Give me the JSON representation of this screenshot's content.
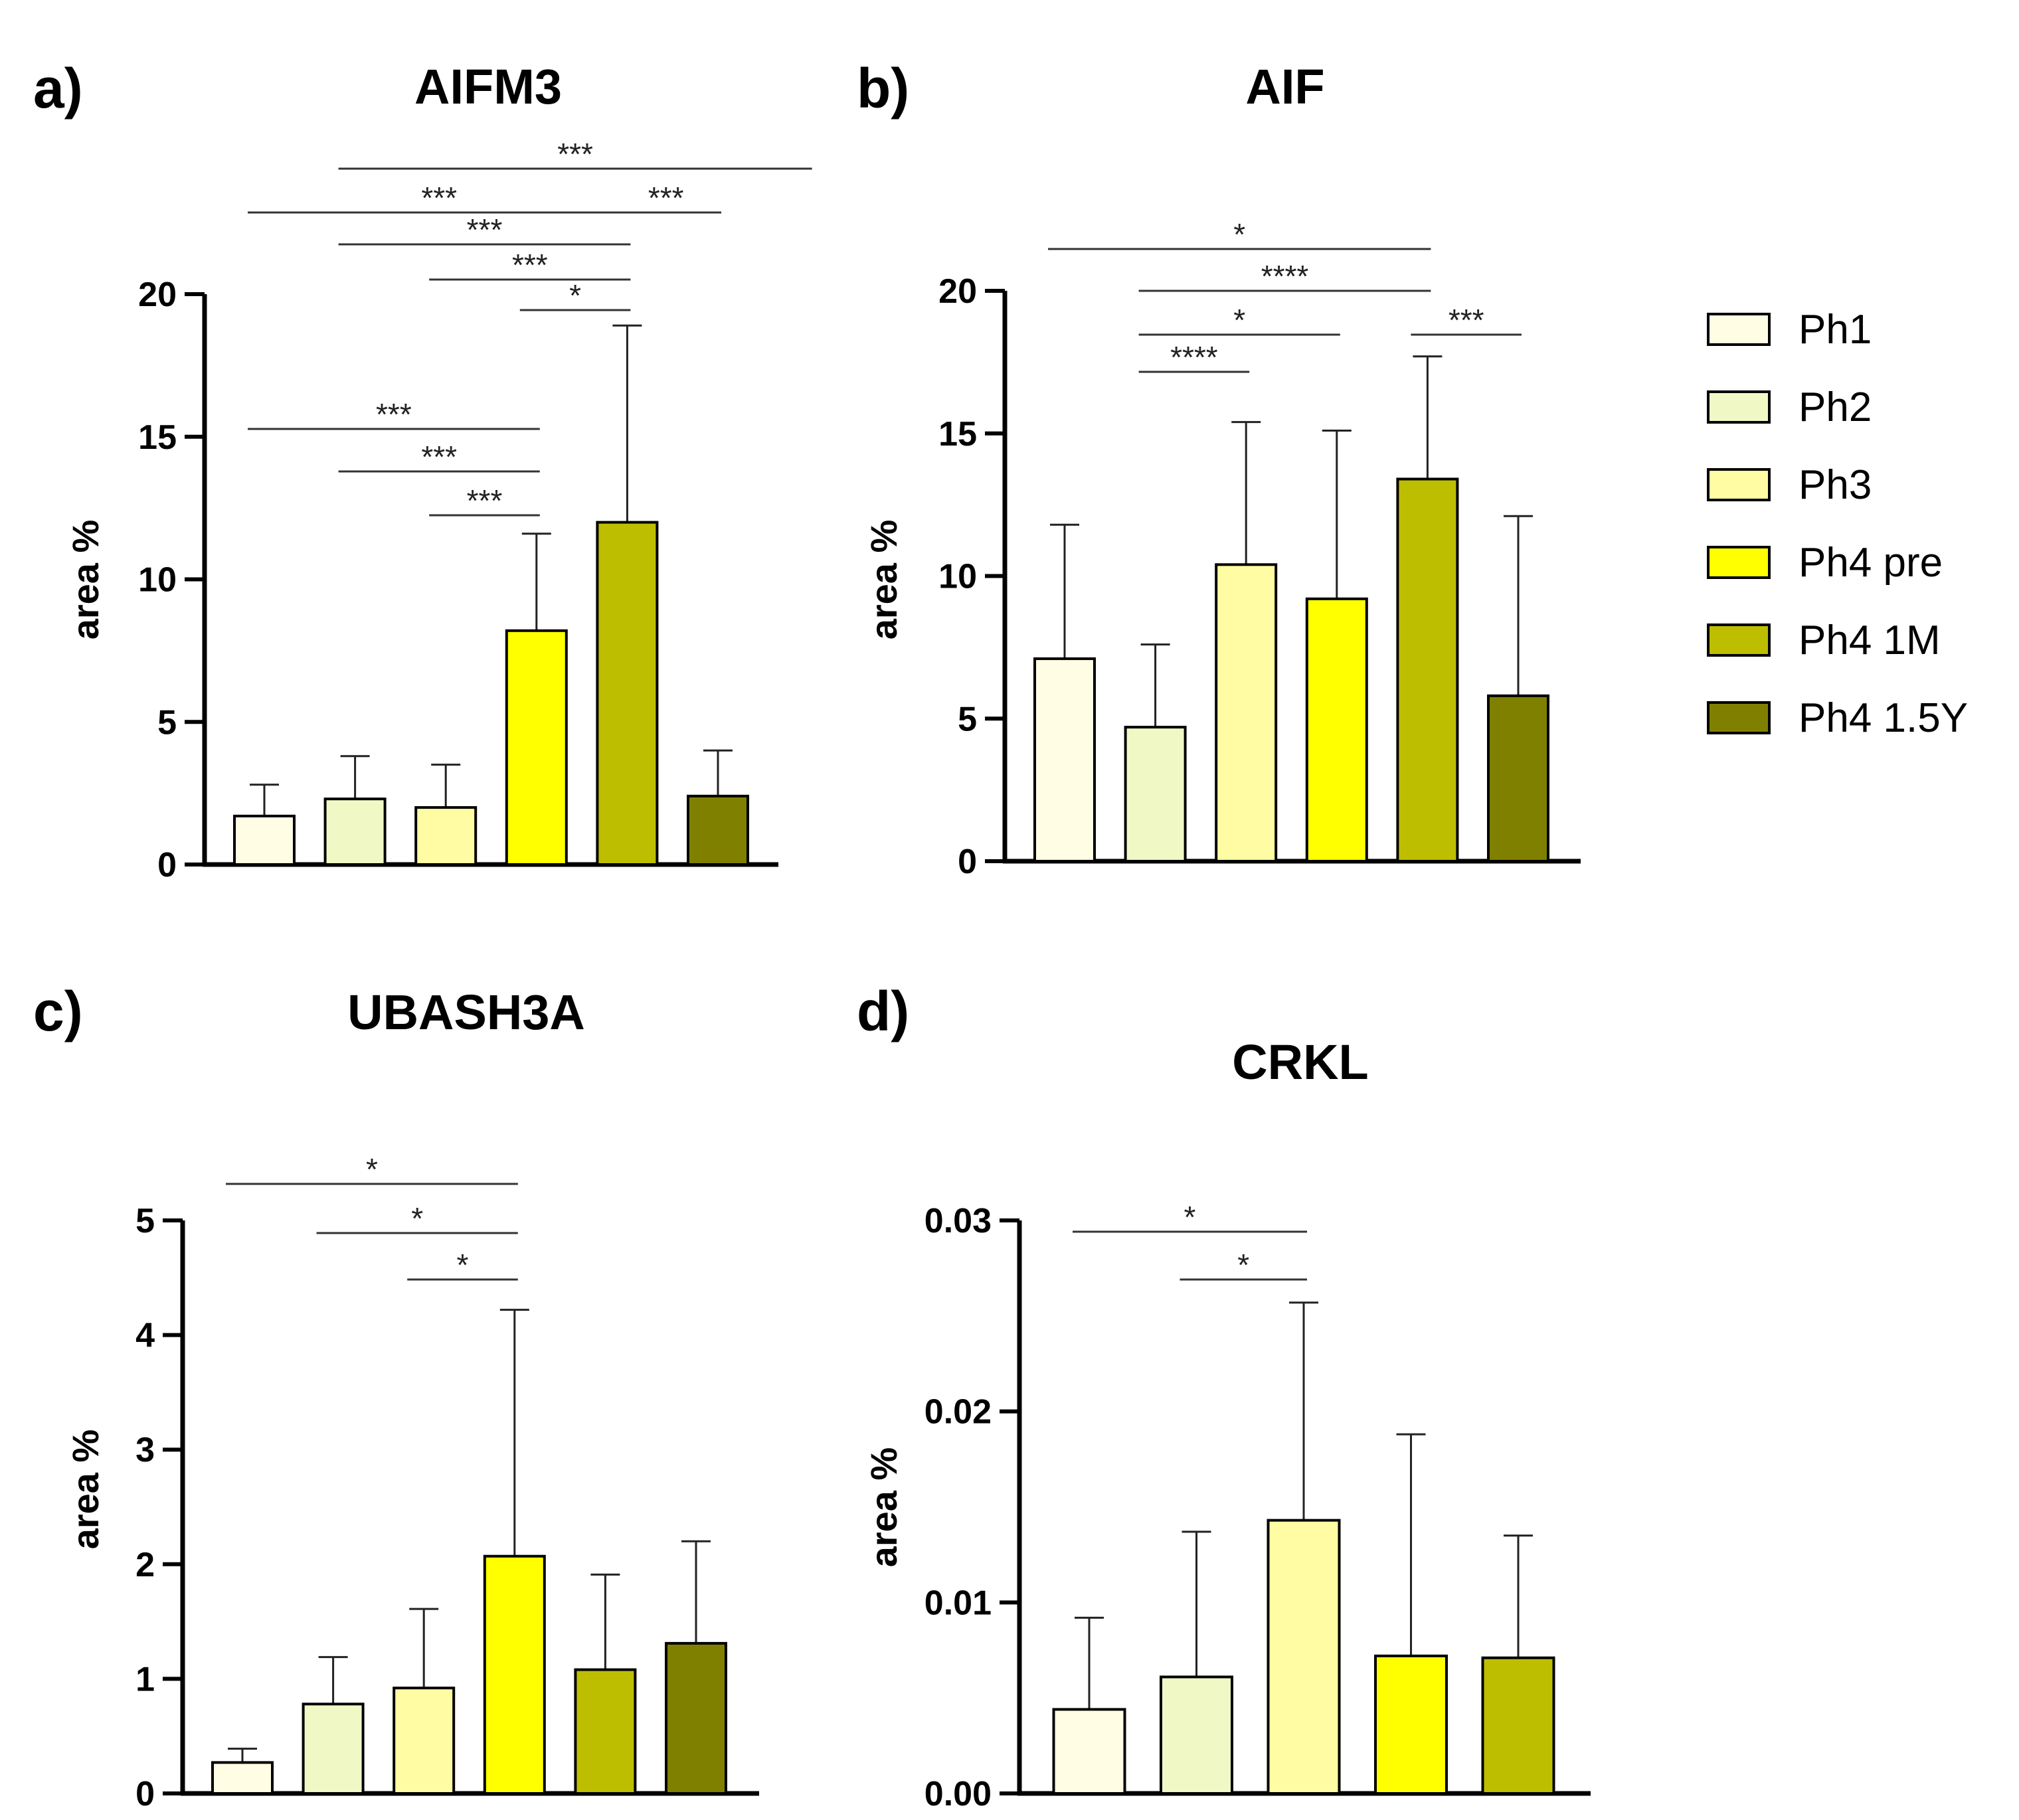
{
  "legend": {
    "items": [
      {
        "label": "Ph1",
        "color": "#FFFDE3"
      },
      {
        "label": "Ph2",
        "color": "#F0F9C5"
      },
      {
        "label": "Ph3",
        "color": "#FFFCA3"
      },
      {
        "label": "Ph4 pre",
        "color": "#FFFF00"
      },
      {
        "label": "Ph4 1M",
        "color": "#BEBE00"
      },
      {
        "label": "Ph4 1.5Y",
        "color": "#808000"
      }
    ]
  },
  "chart_data": [
    {
      "type": "bar",
      "panel": "a)",
      "title": "AIFM3",
      "ylabel": "area %",
      "ylim": [
        0,
        20
      ],
      "yticks": [
        "0",
        "5",
        "10",
        "15",
        "20"
      ],
      "categories": [
        "Ph1",
        "Ph2",
        "Ph3",
        "Ph4 pre",
        "Ph4 1M",
        "Ph4 1.5Y"
      ],
      "values": [
        1.7,
        2.3,
        2.0,
        8.2,
        12.0,
        2.4
      ],
      "errors": [
        1.1,
        1.5,
        1.5,
        3.4,
        6.9,
        1.6
      ],
      "significance": [
        {
          "from": 1,
          "to": 6,
          "label": "***"
        },
        {
          "from": 0,
          "to": 4,
          "label": "***"
        },
        {
          "from": 4,
          "to": 5,
          "label": "***"
        },
        {
          "from": 1,
          "to": 4,
          "label": "***"
        },
        {
          "from": 2,
          "to": 4,
          "label": "***"
        },
        {
          "from": 3,
          "to": 4,
          "label": "*"
        },
        {
          "from": 0,
          "to": 3,
          "label": "***"
        },
        {
          "from": 1,
          "to": 3,
          "label": "***"
        },
        {
          "from": 2,
          "to": 3,
          "label": "***"
        }
      ]
    },
    {
      "type": "bar",
      "panel": "b)",
      "title": "AIF",
      "ylabel": "area %",
      "ylim": [
        0,
        20
      ],
      "yticks": [
        "0",
        "5",
        "10",
        "15",
        "20"
      ],
      "categories": [
        "Ph1",
        "Ph2",
        "Ph3",
        "Ph4 pre",
        "Ph4 1M",
        "Ph4 1.5Y"
      ],
      "values": [
        7.1,
        4.7,
        10.4,
        9.2,
        13.4,
        5.8
      ],
      "errors": [
        4.7,
        2.9,
        5.0,
        5.9,
        4.3,
        6.3
      ],
      "significance": [
        {
          "from": 0,
          "to": 4,
          "label": "*"
        },
        {
          "from": 1,
          "to": 4,
          "label": "****"
        },
        {
          "from": 1,
          "to": 3,
          "label": "*"
        },
        {
          "from": 4,
          "to": 5,
          "label": "***"
        },
        {
          "from": 1,
          "to": 2,
          "label": "****"
        }
      ]
    },
    {
      "type": "bar",
      "panel": "c)",
      "title": "UBASH3A",
      "ylabel": "area %",
      "ylim": [
        0,
        5
      ],
      "yticks": [
        "0",
        "1",
        "2",
        "3",
        "4",
        "5"
      ],
      "categories": [
        "Ph1",
        "Ph2",
        "Ph3",
        "Ph4 pre",
        "Ph4 1M",
        "Ph4 1.5Y"
      ],
      "values": [
        0.27,
        0.78,
        0.92,
        2.07,
        1.08,
        1.31
      ],
      "errors": [
        0.12,
        0.41,
        0.69,
        2.15,
        0.83,
        0.89
      ],
      "significance": [
        {
          "from": 0,
          "to": 3,
          "label": "*"
        },
        {
          "from": 1,
          "to": 3,
          "label": "*"
        },
        {
          "from": 2,
          "to": 3,
          "label": "*"
        }
      ]
    },
    {
      "type": "bar",
      "panel": "d)",
      "title": "CRKL",
      "ylabel": "area %",
      "ylim": [
        0,
        0.03
      ],
      "yticks": [
        "0.00",
        "0.01",
        "0.02",
        "0.03"
      ],
      "categories": [
        "Ph1",
        "Ph2",
        "Ph3",
        "Ph4 pre",
        "Ph4 1M"
      ],
      "values": [
        0.0044,
        0.0061,
        0.0143,
        0.0072,
        0.0071
      ],
      "errors": [
        0.0048,
        0.0076,
        0.0114,
        0.0116,
        0.0064
      ],
      "significance": [
        {
          "from": 0,
          "to": 2,
          "label": "*"
        },
        {
          "from": 1,
          "to": 2,
          "label": "*"
        }
      ]
    }
  ]
}
